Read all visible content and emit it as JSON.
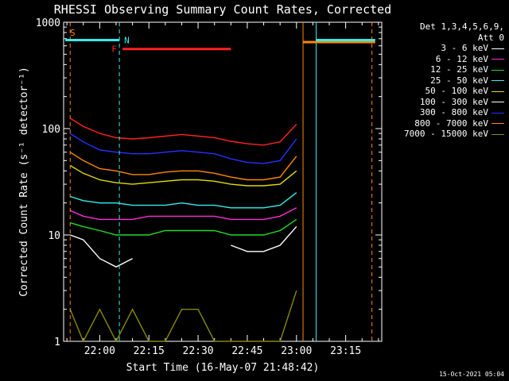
{
  "chart_data": {
    "type": "line",
    "title": "RHESSI Observing Summary Count Rates, Corrected",
    "xlabel": "Start Time (16-May-07 21:48:42)",
    "ylabel": "Corrected Count Rate (s⁻¹ detector⁻¹)",
    "y_scale": "log",
    "ylim": [
      1,
      1000
    ],
    "y_ticks": [
      "1",
      "10",
      "100",
      "1000"
    ],
    "x_ticks": [
      "22:00",
      "22:15",
      "22:30",
      "22:45",
      "23:00",
      "23:15"
    ],
    "legend_header": [
      "Det 1,3,4,5,6,9,",
      "Att 0"
    ],
    "series": [
      {
        "name": "3 - 6 keV",
        "color": "#ffffff",
        "values": [
          10,
          9,
          6,
          5,
          6,
          null,
          null,
          null,
          null,
          null,
          8,
          7,
          7,
          8,
          12,
          null,
          null,
          null
        ]
      },
      {
        "name": "6 - 12 keV",
        "color": "#ff2bd6",
        "values": [
          17,
          15,
          14,
          14,
          14,
          15,
          15,
          15,
          15,
          15,
          14,
          14,
          14,
          15,
          18,
          null,
          null,
          null
        ]
      },
      {
        "name": "12 - 25 keV",
        "color": "#22dd22",
        "values": [
          13,
          12,
          11,
          10,
          10,
          10,
          11,
          11,
          11,
          11,
          10,
          10,
          10,
          11,
          14,
          null,
          null,
          null
        ]
      },
      {
        "name": "25 - 50 keV",
        "color": "#33eeee",
        "values": [
          23,
          21,
          20,
          20,
          19,
          19,
          19,
          20,
          19,
          19,
          18,
          18,
          18,
          19,
          25,
          null,
          null,
          null
        ]
      },
      {
        "name": "50 - 100 keV",
        "color": "#dddd00",
        "values": [
          45,
          38,
          33,
          31,
          30,
          31,
          32,
          33,
          33,
          32,
          30,
          29,
          29,
          30,
          40,
          null,
          null,
          null
        ]
      },
      {
        "name": "100 - 300 keV",
        "color": "#ffffff",
        "values": [
          null,
          null,
          null,
          null,
          null,
          null,
          null,
          null,
          null,
          null,
          null,
          null,
          null,
          null,
          null,
          null,
          null,
          null
        ]
      },
      {
        "name": "300 - 800 keV",
        "color": "#2233ff",
        "values": [
          90,
          75,
          63,
          60,
          58,
          58,
          60,
          62,
          60,
          58,
          52,
          48,
          47,
          50,
          80,
          null,
          null,
          null
        ]
      },
      {
        "name": "800 - 7000 keV",
        "color": "#ff8800",
        "values": [
          60,
          50,
          42,
          40,
          37,
          37,
          39,
          40,
          40,
          38,
          35,
          33,
          33,
          35,
          55,
          null,
          null,
          null
        ]
      },
      {
        "name": "7000 - 15000 keV",
        "color": "#888800",
        "values": [
          2,
          1,
          2,
          1,
          2,
          1,
          1,
          2,
          2,
          1,
          1,
          1,
          1,
          1,
          3,
          null,
          null,
          null
        ]
      }
    ],
    "extra_line": {
      "color": "#ff2222",
      "values": [
        125,
        105,
        90,
        82,
        80,
        82,
        85,
        88,
        85,
        82,
        76,
        72,
        70,
        75,
        110,
        null,
        null,
        null
      ]
    },
    "x": [
      "21:51",
      "21:55",
      "22:00",
      "22:05",
      "22:10",
      "22:15",
      "22:20",
      "22:25",
      "22:30",
      "22:35",
      "22:40",
      "22:45",
      "22:50",
      "22:55",
      "23:00",
      "23:05",
      "23:10",
      "23:15"
    ],
    "flags": [
      {
        "label": "S",
        "color": "#ff8800",
        "value": 800
      },
      {
        "label": "N",
        "color": "#33eeee",
        "value": 680
      },
      {
        "label": "F",
        "color": "#ff2222",
        "value": 560
      }
    ]
  },
  "timestamp": "15-Oct-2021 05:04"
}
